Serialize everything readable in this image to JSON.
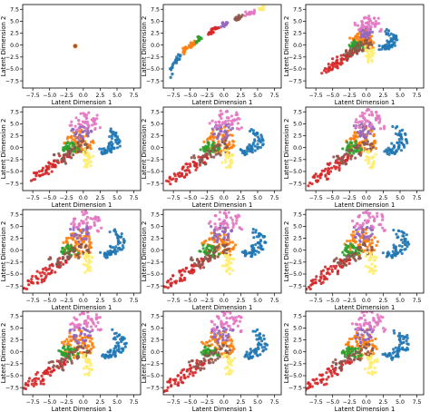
{
  "chart_data": {
    "type": "scatter",
    "layout": "4x3 grid of scatter subplots",
    "grid": false,
    "xlabel": "Latent Dimension 1",
    "ylabel": "Latent Dimension 2",
    "xlim": [
      -9,
      8.5
    ],
    "ylim": [
      -9,
      8.5
    ],
    "xticks": [
      "−7.5",
      "−5.0",
      "−2.5",
      "0.0",
      "2.5",
      "5.0",
      "7.5"
    ],
    "yticks": [
      "7.5",
      "5.0",
      "2.5",
      "0.0",
      "−2.5",
      "−5.0",
      "−7.5"
    ],
    "xtick_values": [
      -7.5,
      -5.0,
      -2.5,
      0.0,
      2.5,
      5.0,
      7.5
    ],
    "ytick_values": [
      7.5,
      5.0,
      2.5,
      0.0,
      -2.5,
      -5.0,
      -7.5
    ],
    "palette": [
      "#1f77b4",
      "#ff7f0e",
      "#2ca02c",
      "#d62728",
      "#9467bd",
      "#8c564b",
      "#e377c2",
      "#ffed6f"
    ],
    "panels": [
      {
        "stage": 0
      },
      {
        "stage": 1
      },
      {
        "stage": 2
      },
      {
        "stage": 3
      },
      {
        "stage": 4
      },
      {
        "stage": 5
      },
      {
        "stage": 6
      },
      {
        "stage": 7
      },
      {
        "stage": 8
      },
      {
        "stage": 9
      },
      {
        "stage": 10
      },
      {
        "stage": 11
      }
    ],
    "clusters": [
      {
        "color": "#1f77b4",
        "description": "arc on the right",
        "points": [
          [
            4.5,
            4.2
          ],
          [
            5.2,
            3.5
          ],
          [
            5.7,
            2.5
          ],
          [
            6.0,
            1.6
          ],
          [
            5.9,
            0.8
          ],
          [
            5.5,
            0.2
          ],
          [
            5.0,
            -0.3
          ],
          [
            4.6,
            -0.6
          ],
          [
            4.2,
            -0.9
          ],
          [
            3.8,
            -1.2
          ],
          [
            3.3,
            -1.0
          ],
          [
            2.9,
            -0.7
          ],
          [
            4.9,
            3.0
          ],
          [
            5.4,
            1.9
          ],
          [
            5.2,
            1.2
          ],
          [
            4.7,
            0.1
          ],
          [
            4.1,
            -0.2
          ],
          [
            3.6,
            -0.5
          ],
          [
            5.8,
            3.1
          ],
          [
            4.4,
            0.7
          ]
        ]
      },
      {
        "color": "#ff7f0e",
        "description": "central cloud",
        "points": [
          [
            -1.5,
            2.0
          ],
          [
            -0.8,
            3.0
          ],
          [
            0.0,
            2.2
          ],
          [
            0.6,
            1.0
          ],
          [
            -1.2,
            0.4
          ],
          [
            -2.0,
            1.2
          ],
          [
            -0.3,
            -0.3
          ],
          [
            0.4,
            3.4
          ],
          [
            -2.6,
            0.0
          ],
          [
            -1.8,
            2.8
          ],
          [
            0.9,
            2.6
          ],
          [
            -0.6,
            1.6
          ],
          [
            1.1,
            0.2
          ],
          [
            -1.0,
            -1.0
          ],
          [
            -2.3,
            2.3
          ],
          [
            -0.2,
            4.4
          ],
          [
            0.5,
            -0.8
          ],
          [
            -1.6,
            3.6
          ],
          [
            0.2,
            1.8
          ],
          [
            -0.9,
            0.9
          ],
          [
            1.3,
            1.4
          ],
          [
            -2.9,
            1.6
          ],
          [
            -0.4,
            2.8
          ],
          [
            0.8,
            -0.2
          ]
        ]
      },
      {
        "color": "#2ca02c",
        "description": "small cluster left of centre",
        "points": [
          [
            -3.0,
            0.2
          ],
          [
            -2.6,
            -0.4
          ],
          [
            -2.2,
            0.4
          ],
          [
            -1.8,
            -0.2
          ],
          [
            -2.4,
            -0.9
          ],
          [
            -1.5,
            0.3
          ],
          [
            -2.9,
            -0.6
          ],
          [
            -2.0,
            0.9
          ],
          [
            -1.2,
            -0.5
          ],
          [
            -2.7,
            0.7
          ],
          [
            -1.9,
            -1.1
          ],
          [
            -3.3,
            -0.2
          ]
        ]
      },
      {
        "color": "#d62728",
        "description": "diagonal strand lower-left",
        "points": [
          [
            -8.8,
            -8.0
          ],
          [
            -8.0,
            -7.2
          ],
          [
            -7.2,
            -6.8
          ],
          [
            -6.8,
            -6.0
          ],
          [
            -6.0,
            -5.6
          ],
          [
            -5.5,
            -4.8
          ],
          [
            -5.0,
            -4.2
          ],
          [
            -4.5,
            -4.6
          ],
          [
            -4.0,
            -3.6
          ],
          [
            -3.5,
            -3.0
          ],
          [
            -3.0,
            -2.4
          ],
          [
            -2.5,
            -2.0
          ],
          [
            -7.6,
            -5.9
          ],
          [
            -6.3,
            -6.5
          ],
          [
            -4.9,
            -3.2
          ],
          [
            -5.8,
            -3.9
          ],
          [
            -8.3,
            -6.6
          ],
          [
            -3.8,
            -2.2
          ],
          [
            -6.6,
            -4.7
          ]
        ]
      },
      {
        "color": "#9467bd",
        "description": "purple cluster",
        "points": [
          [
            -1.0,
            3.5
          ],
          [
            -0.2,
            4.1
          ],
          [
            0.6,
            3.2
          ],
          [
            -1.6,
            4.6
          ],
          [
            0.1,
            2.6
          ],
          [
            -0.6,
            2.2
          ],
          [
            1.0,
            4.4
          ],
          [
            -1.3,
            3.0
          ],
          [
            0.3,
            5.0
          ],
          [
            -0.8,
            4.8
          ]
        ]
      },
      {
        "color": "#8c564b",
        "description": "brown strand",
        "points": [
          [
            -4.2,
            -3.0
          ],
          [
            -3.6,
            -2.4
          ],
          [
            -3.0,
            -1.6
          ],
          [
            -2.4,
            -1.0
          ],
          [
            -1.8,
            -0.4
          ],
          [
            -1.2,
            0.2
          ],
          [
            -0.6,
            0.8
          ],
          [
            0.0,
            1.2
          ],
          [
            0.6,
            0.4
          ],
          [
            -2.0,
            -2.0
          ],
          [
            -3.4,
            -3.4
          ],
          [
            -1.0,
            -1.4
          ],
          [
            -4.8,
            -2.0
          ],
          [
            0.3,
            -0.6
          ]
        ]
      },
      {
        "color": "#e377c2",
        "description": "pink cluster at top",
        "points": [
          [
            -1.0,
            7.0
          ],
          [
            0.5,
            8.2
          ],
          [
            1.5,
            6.5
          ],
          [
            -0.5,
            5.5
          ],
          [
            2.0,
            7.5
          ],
          [
            0.0,
            6.2
          ],
          [
            1.0,
            5.0
          ],
          [
            -1.8,
            6.0
          ],
          [
            2.5,
            4.5
          ],
          [
            0.8,
            7.0
          ],
          [
            -0.2,
            8.0
          ],
          [
            1.8,
            5.8
          ],
          [
            -1.2,
            4.8
          ],
          [
            0.3,
            5.9
          ],
          [
            2.2,
            6.8
          ]
        ]
      },
      {
        "color": "#ffed6f",
        "description": "yellow cluster",
        "points": [
          [
            0.5,
            -1.5
          ],
          [
            0.8,
            -2.6
          ],
          [
            0.2,
            -3.2
          ],
          [
            1.0,
            -4.0
          ],
          [
            0.6,
            -2.0
          ],
          [
            0.9,
            -3.5
          ],
          [
            0.3,
            -1.0
          ],
          [
            1.2,
            -1.8
          ],
          [
            0.7,
            -4.6
          ]
        ]
      }
    ]
  }
}
